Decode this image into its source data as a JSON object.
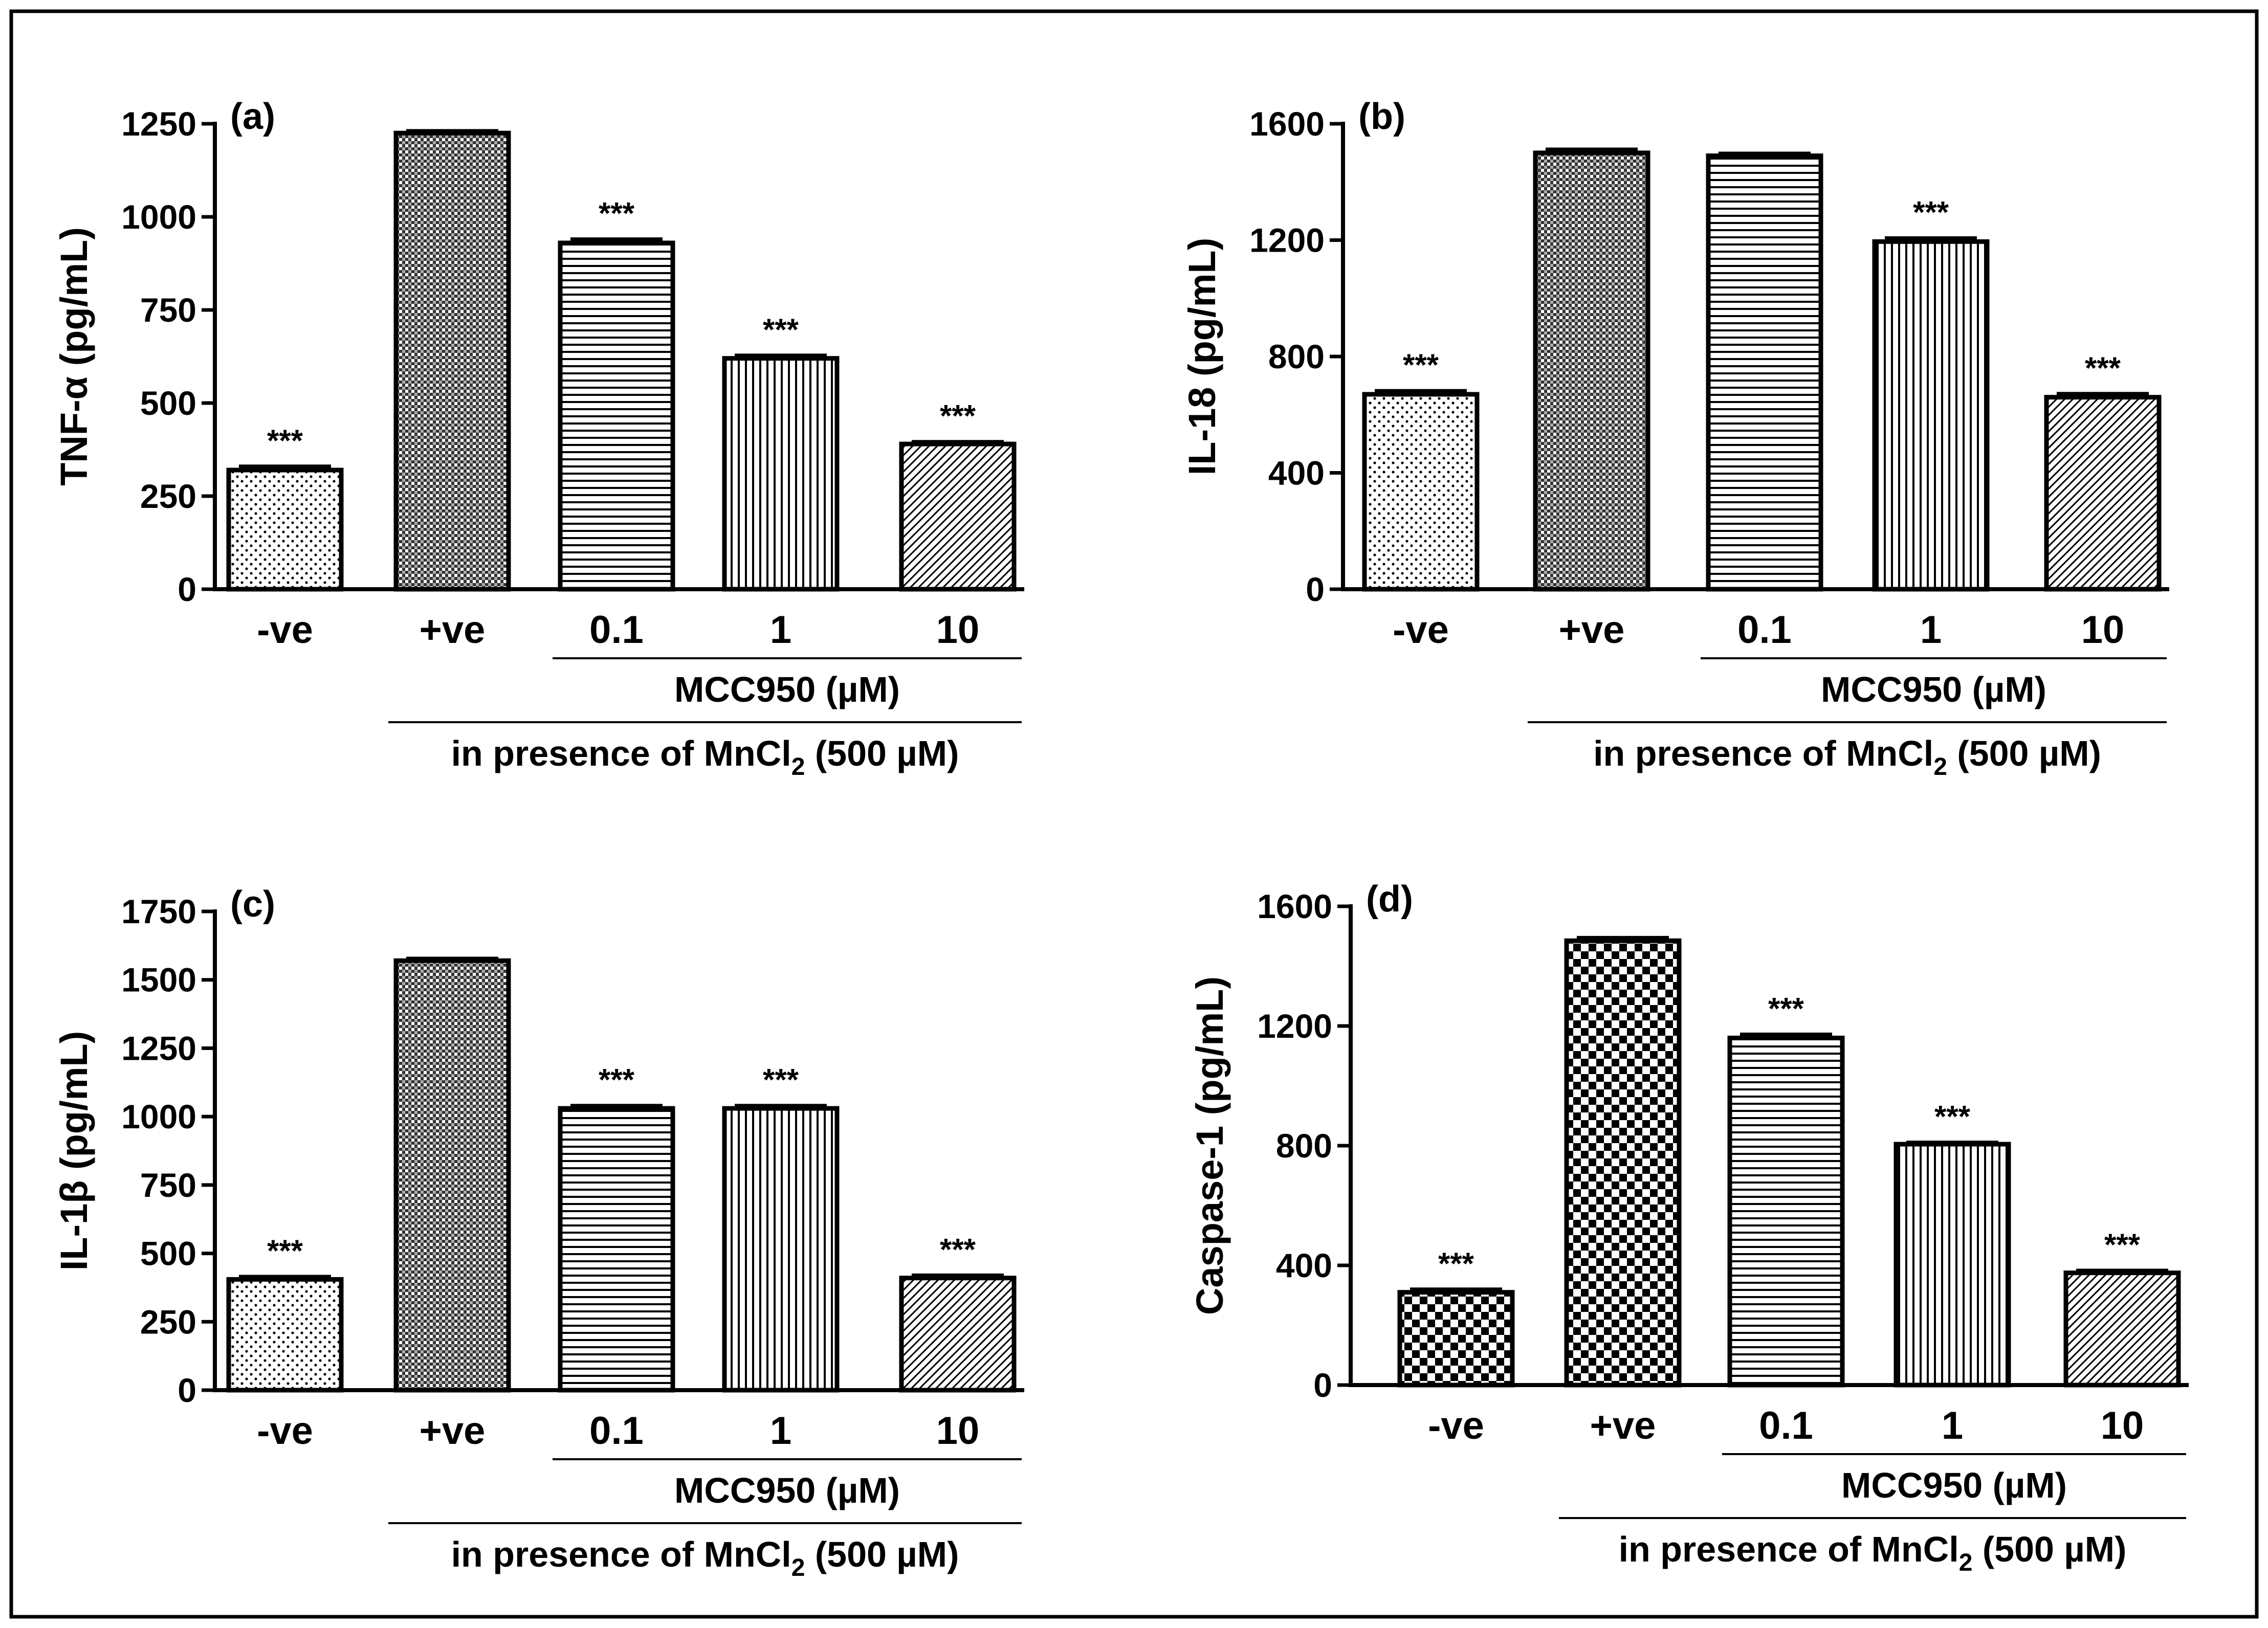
{
  "chart_data": [
    {
      "type": "bar",
      "panel_label": "(a)",
      "ylabel": "TNF-α (pg/mL)",
      "categories": [
        "-ve",
        "+ve",
        "0.1",
        "1",
        "10"
      ],
      "values": [
        320,
        1225,
        930,
        620,
        390
      ],
      "errors": [
        10,
        6,
        10,
        8,
        6
      ],
      "significance": [
        "***",
        "",
        "***",
        "***",
        "***"
      ],
      "ylim": [
        0,
        1250
      ],
      "yticks": [
        "0",
        "250",
        "500",
        "750",
        "1000",
        "1250"
      ],
      "group_label_inner": "MCC950 (µM)",
      "group_label_outer_pre": "in presence of MnCl",
      "group_label_outer_sub": "2",
      "group_label_outer_post": " (500 µM)"
    },
    {
      "type": "bar",
      "panel_label": "(b)",
      "ylabel": "IL-18 (pg/mL)",
      "categories": [
        "-ve",
        "+ve",
        "0.1",
        "1",
        "10"
      ],
      "values": [
        670,
        1500,
        1490,
        1195,
        660
      ],
      "errors": [
        12,
        12,
        8,
        12,
        12
      ],
      "significance": [
        "***",
        "",
        "",
        "***",
        "***"
      ],
      "ylim": [
        0,
        1600
      ],
      "yticks": [
        "0",
        "400",
        "800",
        "1200",
        "1600"
      ],
      "group_label_inner": "MCC950 (µM)",
      "group_label_outer_pre": "in presence of MnCl",
      "group_label_outer_sub": "2",
      "group_label_outer_post": " (500 µM)"
    },
    {
      "type": "bar",
      "panel_label": "(c)",
      "ylabel": "IL-1β (pg/mL)",
      "categories": [
        "-ve",
        "+ve",
        "0.1",
        "1",
        "10"
      ],
      "values": [
        405,
        1570,
        1030,
        1030,
        410
      ],
      "errors": [
        10,
        8,
        10,
        10,
        10
      ],
      "significance": [
        "***",
        "",
        "***",
        "***",
        "***"
      ],
      "ylim": [
        0,
        1750
      ],
      "yticks": [
        "0",
        "250",
        "500",
        "750",
        "1000",
        "1250",
        "1500",
        "1750"
      ],
      "group_label_inner": "MCC950 (µM)",
      "group_label_outer_pre": "in presence of MnCl",
      "group_label_outer_sub": "2",
      "group_label_outer_post": " (500 µM)"
    },
    {
      "type": "bar",
      "panel_label": "(d)",
      "ylabel": "Caspase-1 (pg/mL)",
      "categories": [
        "-ve",
        "+ve",
        "0.1",
        "1",
        "10"
      ],
      "values": [
        310,
        1485,
        1160,
        805,
        375
      ],
      "errors": [
        10,
        10,
        12,
        6,
        8
      ],
      "significance": [
        "***",
        "",
        "***",
        "***",
        "***"
      ],
      "ylim": [
        0,
        1600
      ],
      "yticks": [
        "0",
        "400",
        "800",
        "1200",
        "1600"
      ],
      "group_label_inner": "MCC950 (µM)",
      "group_label_outer_pre": "in presence of MnCl",
      "group_label_outer_sub": "2",
      "group_label_outer_post": " (500 µM)"
    }
  ]
}
